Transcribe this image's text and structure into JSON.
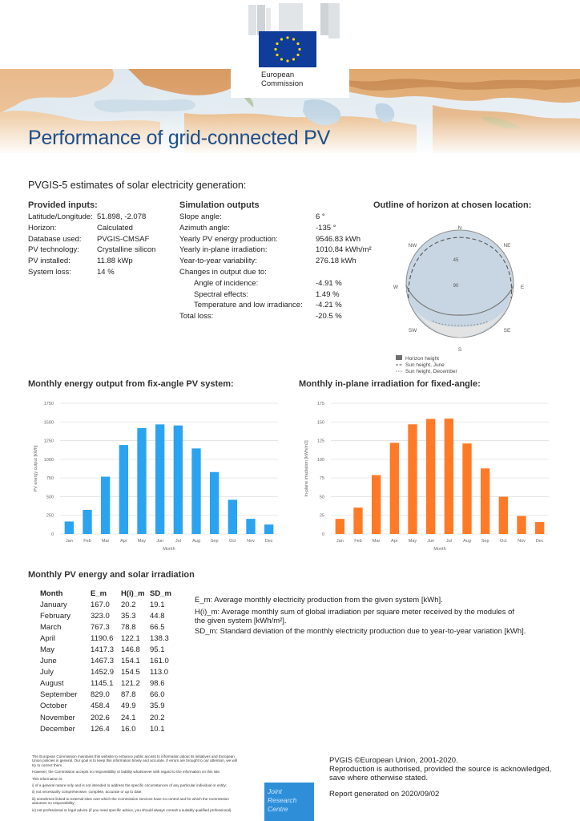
{
  "header": {
    "logo_line1": "European",
    "logo_line2": "Commission",
    "title": "Performance of grid-connected PV"
  },
  "intro": "PVGIS-5 estimates of solar electricity generation:",
  "inputs": {
    "heading": "Provided inputs:",
    "rows": [
      {
        "label": "Latitude/Longitude:",
        "value": "51.898, -2.078"
      },
      {
        "label": "Horizon:",
        "value": "Calculated"
      },
      {
        "label": "Database used:",
        "value": "PVGIS-CMSAF"
      },
      {
        "label": "PV technology:",
        "value": "Crystalline silicon"
      },
      {
        "label": "PV installed:",
        "value": "11.88 kWp"
      },
      {
        "label": "System loss:",
        "value": "14 %"
      }
    ]
  },
  "outputs": {
    "heading": "Simulation outputs",
    "rows": [
      {
        "label": "Slope angle:",
        "value": "6 °"
      },
      {
        "label": "Azimuth angle:",
        "value": "-135 °"
      },
      {
        "label": "Yearly PV energy production:",
        "value": "9546.83 kWh"
      },
      {
        "label": "Yearly in-plane irradiation:",
        "value": "1010.84 kWh/m²"
      },
      {
        "label": "Year-to-year variability:",
        "value": "276.18 kWh"
      },
      {
        "label": "Changes in output due to:",
        "value": ""
      },
      {
        "label": "Angle of incidence:",
        "value": "-4.91 %"
      },
      {
        "label": "Spectral effects:",
        "value": "1.49 %"
      },
      {
        "label": "Temperature and low irradiance:",
        "value": "-4.21 %"
      },
      {
        "label": "Total loss:",
        "value": "-20.5 %"
      }
    ]
  },
  "horizon": {
    "heading": "Outline of horizon at chosen location:",
    "directions": {
      "n": "N",
      "ne": "NE",
      "e": "E",
      "se": "SE",
      "s": "S",
      "sw": "SW",
      "w": "W",
      "nw": "NW"
    },
    "ring_labels": {
      "r45": "45",
      "r90": "90"
    },
    "legend": [
      "Horizon height",
      "Sun height, June",
      "Sun height, December"
    ],
    "colors": {
      "sky": "#c8d6e3",
      "horizon": "#6e6e6e",
      "border": "#8c8c8c"
    }
  },
  "chart_energy": {
    "heading": "Monthly energy output from fix-angle PV system:",
    "chart_data": {
      "type": "bar",
      "categories": [
        "Jan",
        "Feb",
        "Mar",
        "Apr",
        "May",
        "Jun",
        "Jul",
        "Aug",
        "Sep",
        "Oct",
        "Nov",
        "Dec"
      ],
      "values": [
        167.0,
        323.0,
        767.3,
        1190.6,
        1417.3,
        1467.3,
        1452.9,
        1145.1,
        829.0,
        458.4,
        202.6,
        126.4
      ],
      "xlabel": "Month",
      "ylabel": "PV energy output [kWh]",
      "ylim": [
        0,
        1750
      ],
      "yticks": [
        "0",
        "250",
        "500",
        "750",
        "1000",
        "1250",
        "1500",
        "1750"
      ],
      "grid": true,
      "color": "#2aa3f0"
    }
  },
  "chart_irr": {
    "heading": "Monthly in-plane irradiation for fixed-angle:",
    "chart_data": {
      "type": "bar",
      "categories": [
        "Jan",
        "Feb",
        "Mar",
        "Apr",
        "May",
        "Jun",
        "Jul",
        "Aug",
        "Sep",
        "Oct",
        "Nov",
        "Dec"
      ],
      "values": [
        20.2,
        35.3,
        78.8,
        122.1,
        146.8,
        154.1,
        154.5,
        121.2,
        87.8,
        49.9,
        24.1,
        16.0
      ],
      "xlabel": "Month",
      "ylabel": "In-plane irradiation [kWh/m2]",
      "ylim": [
        0,
        175
      ],
      "yticks": [
        "0",
        "25",
        "50",
        "75",
        "100",
        "125",
        "150",
        "175"
      ],
      "grid": true,
      "color": "#ff7a26"
    }
  },
  "monthly": {
    "heading": "Monthly PV energy and solar irradiation",
    "columns": [
      "Month",
      "E_m",
      "H(i)_m",
      "SD_m"
    ],
    "rows": [
      [
        "January",
        "167.0",
        "20.2",
        "19.1"
      ],
      [
        "February",
        "323.0",
        "35.3",
        "44.8"
      ],
      [
        "March",
        "767.3",
        "78.8",
        "66.5"
      ],
      [
        "April",
        "1190.6",
        "122.1",
        "138.3"
      ],
      [
        "May",
        "1417.3",
        "146.8",
        "95.1"
      ],
      [
        "June",
        "1467.3",
        "154.1",
        "161.0"
      ],
      [
        "July",
        "1452.9",
        "154.5",
        "113.0"
      ],
      [
        "August",
        "1145.1",
        "121.2",
        "98.6"
      ],
      [
        "September",
        "829.0",
        "87.8",
        "66.0"
      ],
      [
        "October",
        "458.4",
        "49.9",
        "35.9"
      ],
      [
        "November",
        "202.6",
        "24.1",
        "20.2"
      ],
      [
        "December",
        "126.4",
        "16.0",
        "10.1"
      ]
    ],
    "legend": {
      "em": "E_m: Average monthly electricity production from the given system [kWh].",
      "him": "H(i)_m: Average monthly sum of global irradiation per square meter received by the modules of the given system [kWh/m²].",
      "sdm": "SD_m: Standard deviation of the monthly electricity production due to year-to-year variation [kWh]."
    }
  },
  "footer": {
    "disclaimer": [
      "The European Commission maintains this website to enhance public access to information about its initiatives and European",
      "Union policies in general. Our goal is to keep this information timely and accurate. If errors are brought to our attention, we will",
      "try to correct them.",
      "However, the Commission accepts no responsibility or liability whatsoever with regard to the information on this site.",
      "This information is:",
      "i) of a general nature only and is not intended to address the specific circumstances of any particular individual or entity;",
      "ii) not necessarily comprehensive, complete, accurate or up to date;",
      "iii) sometimes linked to external sites over which the Commission services have no control and for which the Commission",
      "assumes no responsibility;",
      "iv) not professional or legal advice (if you need specific advice, you should always consult a suitably qualified professional)."
    ],
    "jrc": [
      "Joint",
      "Research",
      "Centre"
    ],
    "copyright": "PVGIS ©European Union, 2001-2020.",
    "reproduction": "Reproduction is authorised, provided the source is acknowledged, save where otherwise stated.",
    "generated": "Report generated on 2020/09/02"
  }
}
